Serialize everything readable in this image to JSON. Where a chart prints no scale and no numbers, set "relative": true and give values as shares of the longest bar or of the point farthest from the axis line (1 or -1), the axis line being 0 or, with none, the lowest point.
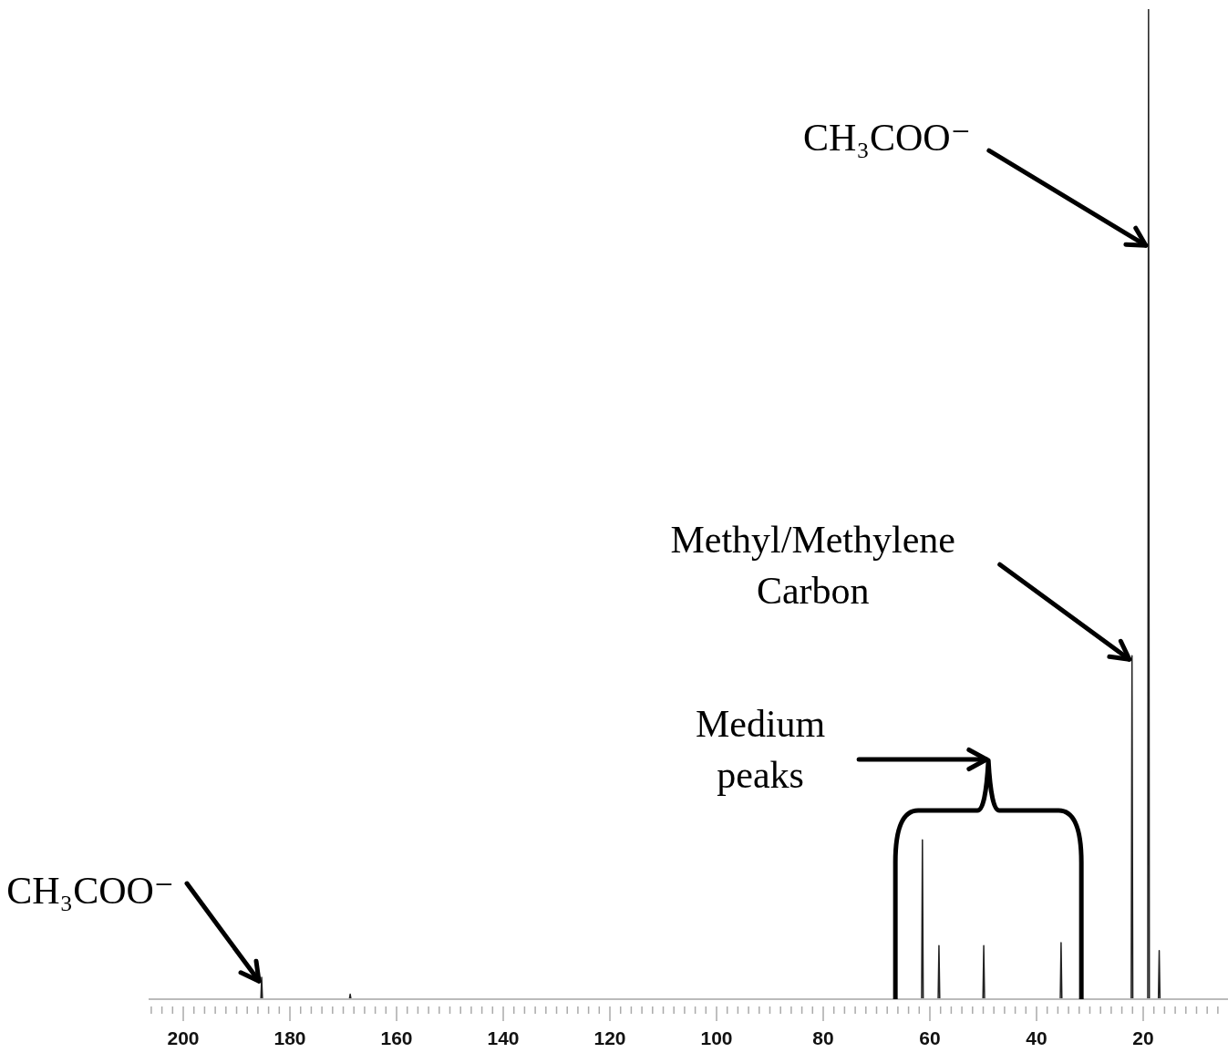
{
  "chart_data": {
    "type": "line",
    "relative": true,
    "marker": "none",
    "tick_labels": "x",
    "xlim": [
      206.5,
      4.1
    ],
    "xticks": [
      {
        "value": 206,
        "label": null
      },
      {
        "value": 204,
        "label": null
      },
      {
        "value": 202,
        "label": null
      },
      200,
      {
        "value": 198,
        "label": null
      },
      {
        "value": 196,
        "label": null
      },
      {
        "value": 194,
        "label": null
      },
      {
        "value": 192,
        "label": null
      },
      {
        "value": 190,
        "label": null
      },
      {
        "value": 188,
        "label": null
      },
      {
        "value": 186,
        "label": null
      },
      {
        "value": 184,
        "label": null
      },
      {
        "value": 182,
        "label": null
      },
      180,
      {
        "value": 178,
        "label": null
      },
      {
        "value": 176,
        "label": null
      },
      {
        "value": 174,
        "label": null
      },
      {
        "value": 172,
        "label": null
      },
      {
        "value": 170,
        "label": null
      },
      {
        "value": 168,
        "label": null
      },
      {
        "value": 166,
        "label": null
      },
      {
        "value": 164,
        "label": null
      },
      {
        "value": 162,
        "label": null
      },
      160,
      {
        "value": 158,
        "label": null
      },
      {
        "value": 156,
        "label": null
      },
      {
        "value": 154,
        "label": null
      },
      {
        "value": 152,
        "label": null
      },
      {
        "value": 150,
        "label": null
      },
      {
        "value": 148,
        "label": null
      },
      {
        "value": 146,
        "label": null
      },
      {
        "value": 144,
        "label": null
      },
      {
        "value": 142,
        "label": null
      },
      140,
      {
        "value": 138,
        "label": null
      },
      {
        "value": 136,
        "label": null
      },
      {
        "value": 134,
        "label": null
      },
      {
        "value": 132,
        "label": null
      },
      {
        "value": 130,
        "label": null
      },
      {
        "value": 128,
        "label": null
      },
      {
        "value": 126,
        "label": null
      },
      {
        "value": 124,
        "label": null
      },
      {
        "value": 122,
        "label": null
      },
      120,
      {
        "value": 118,
        "label": null
      },
      {
        "value": 116,
        "label": null
      },
      {
        "value": 114,
        "label": null
      },
      {
        "value": 112,
        "label": null
      },
      {
        "value": 110,
        "label": null
      },
      {
        "value": 108,
        "label": null
      },
      {
        "value": 106,
        "label": null
      },
      {
        "value": 104,
        "label": null
      },
      {
        "value": 102,
        "label": null
      },
      100,
      {
        "value": 98,
        "label": null
      },
      {
        "value": 96,
        "label": null
      },
      {
        "value": 94,
        "label": null
      },
      {
        "value": 92,
        "label": null
      },
      {
        "value": 90,
        "label": null
      },
      {
        "value": 88,
        "label": null
      },
      {
        "value": 86,
        "label": null
      },
      {
        "value": 84,
        "label": null
      },
      {
        "value": 82,
        "label": null
      },
      80,
      {
        "value": 78,
        "label": null
      },
      {
        "value": 76,
        "label": null
      },
      {
        "value": 74,
        "label": null
      },
      {
        "value": 72,
        "label": null
      },
      {
        "value": 70,
        "label": null
      },
      {
        "value": 68,
        "label": null
      },
      {
        "value": 66,
        "label": null
      },
      {
        "value": 64,
        "label": null
      },
      {
        "value": 62,
        "label": null
      },
      60,
      {
        "value": 58,
        "label": null
      },
      {
        "value": 56,
        "label": null
      },
      {
        "value": 54,
        "label": null
      },
      {
        "value": 52,
        "label": null
      },
      {
        "value": 50,
        "label": null
      },
      {
        "value": 48,
        "label": null
      },
      {
        "value": 46,
        "label": null
      },
      {
        "value": 44,
        "label": null
      },
      {
        "value": 42,
        "label": null
      },
      40,
      {
        "value": 38,
        "label": null
      },
      {
        "value": 36,
        "label": null
      },
      {
        "value": 34,
        "label": null
      },
      {
        "value": 32,
        "label": null
      },
      {
        "value": 30,
        "label": null
      },
      {
        "value": 28,
        "label": null
      },
      {
        "value": 26,
        "label": null
      },
      {
        "value": 24,
        "label": null
      },
      {
        "value": 22,
        "label": null
      },
      20,
      {
        "value": 18,
        "label": null
      },
      {
        "value": 16,
        "label": null
      },
      {
        "value": 14,
        "label": null
      },
      {
        "value": 12,
        "label": null
      },
      {
        "value": 10,
        "label": null
      },
      {
        "value": 8,
        "label": null
      },
      {
        "value": 6,
        "label": null
      }
    ],
    "series": [
      {
        "color": "#222222",
        "line_style": "solid",
        "x": [
          206.5,
          185.45,
          185.3,
          185.15,
          168.85,
          168.7,
          168.55,
          61.55,
          61.4,
          61.25,
          58.45,
          58.3,
          58.15,
          50.05,
          49.9,
          49.75,
          35.55,
          35.4,
          35.25,
          22.25,
          22.1,
          21.95,
          19.15,
          19.0,
          18.85,
          17.15,
          17.0,
          16.85,
          4.1
        ],
        "values": [
          0,
          0,
          0.022,
          0,
          0,
          0.005,
          0,
          0,
          0.161,
          0,
          0,
          0.054,
          0,
          0,
          0.054,
          0,
          0,
          0.057,
          0,
          0,
          0.347,
          0,
          0,
          1,
          0,
          0,
          0.049,
          0,
          0
        ]
      }
    ],
    "annotations": [
      {
        "text": "CH₃COO⁻",
        "x": 19.0,
        "y": 0.765
      },
      {
        "text": "Methyl/Methylene Carbon",
        "x": 22.1,
        "y": 0.347
      },
      {
        "text": "CH₃COO⁻",
        "x": 185.3,
        "y": 0.022
      },
      "Medium peaks"
    ]
  }
}
